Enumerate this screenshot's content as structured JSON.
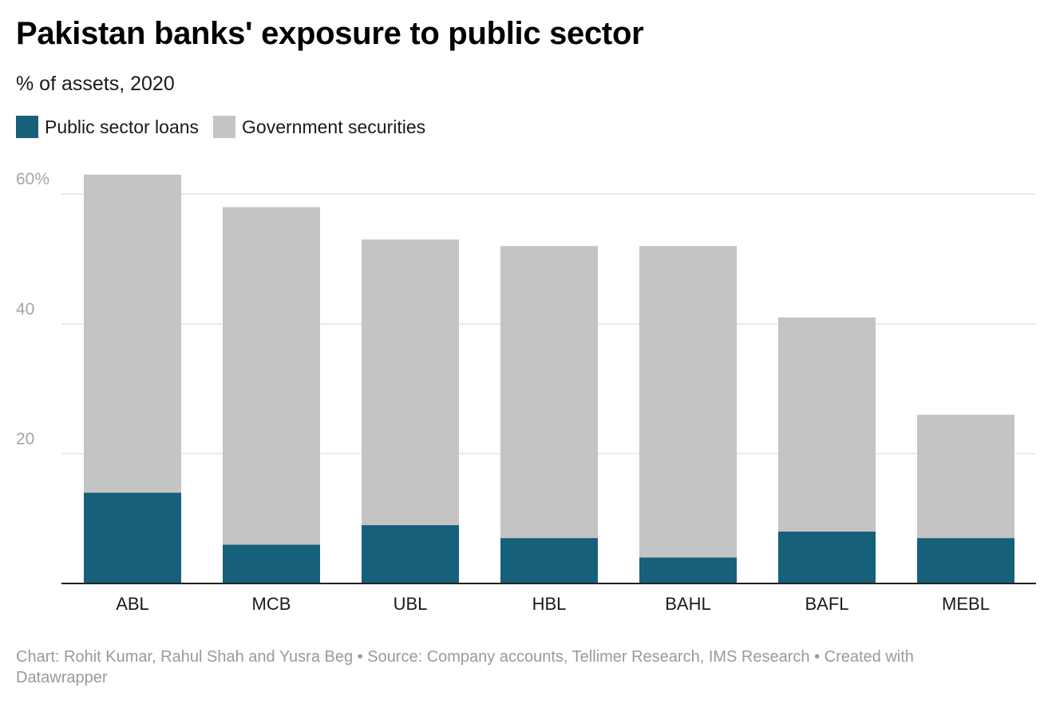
{
  "header": {
    "title": "Pakistan banks' exposure to public sector",
    "subtitle": "% of assets, 2020"
  },
  "colors": {
    "loans": "#17607a",
    "securities": "#c4c4c4",
    "grid": "#e3e3e3",
    "axis_text": "#a6a6a6",
    "baseline": "#222222"
  },
  "footer": {
    "credit": "Chart: Rohit Kumar, Rahul Shah and Yusra Beg • Source: Company accounts, Tellimer Research, IMS Research • Created with Datawrapper"
  },
  "chart_data": {
    "type": "bar",
    "stacked": true,
    "categories": [
      "ABL",
      "MCB",
      "UBL",
      "HBL",
      "BAHL",
      "BAFL",
      "MEBL"
    ],
    "series": [
      {
        "name": "Public sector loans",
        "values": [
          14,
          6,
          9,
          7,
          4,
          8,
          7
        ]
      },
      {
        "name": "Government securities",
        "values": [
          49,
          52,
          44,
          45,
          48,
          33,
          19
        ]
      }
    ],
    "yticks": [
      "20",
      "40",
      "60%"
    ],
    "ytick_values": [
      20,
      40,
      60
    ],
    "ylim": [
      0,
      63
    ],
    "grid": true,
    "legend_position": "top-left"
  }
}
